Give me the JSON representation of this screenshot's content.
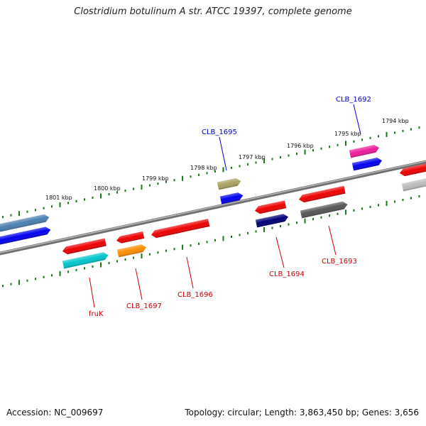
{
  "title": "Clostridium botulinum A str. ATCC 19397, complete genome",
  "footer": {
    "accession": "Accession: NC_009697",
    "summary": "Topology: circular; Length: 3,863,450 bp; Genes: 3,656"
  },
  "colors": {
    "backbone": "#8a8a8a",
    "tick": "#1a7a1a",
    "label_forward": "#0000cc",
    "label_reverse": "#cc0000"
  },
  "kbp_labels": [
    "1801 kbp",
    "1800 kbp",
    "1799 kbp",
    "1798 kbp",
    "1797 kbp",
    "1796 kbp",
    "1795 kbp",
    "1794 kbp"
  ],
  "gene_labels": {
    "forward": [
      "CLB_1695",
      "CLB_1692"
    ],
    "reverse": [
      "fruK",
      "CLB_1697",
      "CLB_1696",
      "CLB_1694",
      "CLB_1693"
    ]
  }
}
